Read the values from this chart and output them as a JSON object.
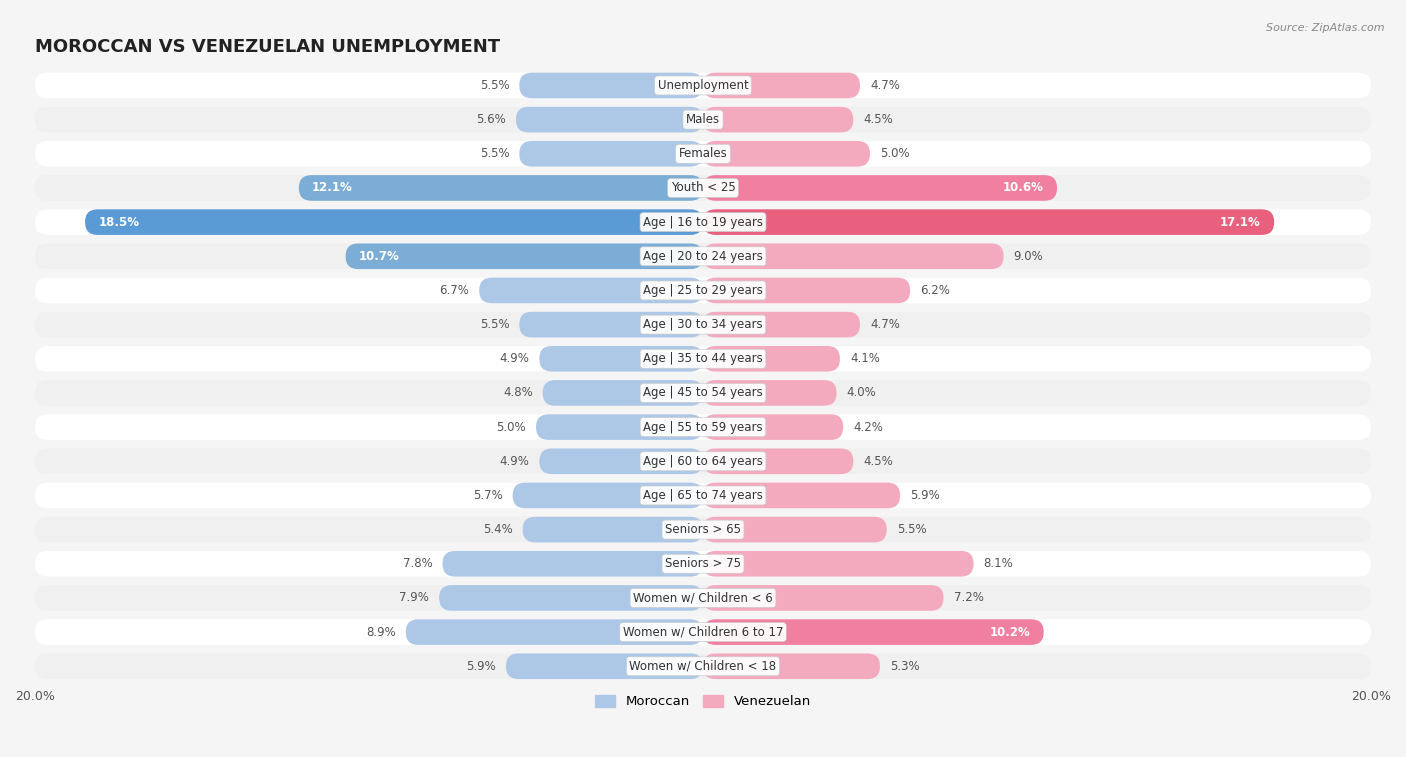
{
  "title": "MOROCCAN VS VENEZUELAN UNEMPLOYMENT",
  "source": "Source: ZipAtlas.com",
  "categories": [
    "Unemployment",
    "Males",
    "Females",
    "Youth < 25",
    "Age | 16 to 19 years",
    "Age | 20 to 24 years",
    "Age | 25 to 29 years",
    "Age | 30 to 34 years",
    "Age | 35 to 44 years",
    "Age | 45 to 54 years",
    "Age | 55 to 59 years",
    "Age | 60 to 64 years",
    "Age | 65 to 74 years",
    "Seniors > 65",
    "Seniors > 75",
    "Women w/ Children < 6",
    "Women w/ Children 6 to 17",
    "Women w/ Children < 18"
  ],
  "moroccan": [
    5.5,
    5.6,
    5.5,
    12.1,
    18.5,
    10.7,
    6.7,
    5.5,
    4.9,
    4.8,
    5.0,
    4.9,
    5.7,
    5.4,
    7.8,
    7.9,
    8.9,
    5.9
  ],
  "venezuelan": [
    4.7,
    4.5,
    5.0,
    10.6,
    17.1,
    9.0,
    6.2,
    4.7,
    4.1,
    4.0,
    4.2,
    4.5,
    5.9,
    5.5,
    8.1,
    7.2,
    10.2,
    5.3
  ],
  "moroccan_color_normal": "#adc8e6",
  "moroccan_color_medium": "#7badd6",
  "moroccan_color_large": "#5b9bd5",
  "venezuelan_color_normal": "#f4aabe",
  "venezuelan_color_medium": "#f07fa0",
  "venezuelan_color_large": "#e8607e",
  "row_bg_light": "#f0f0f0",
  "row_bg_white": "#ffffff",
  "axis_limit": 20.0,
  "background_color": "#f5f5f5",
  "legend_moroccan": "Moroccan",
  "legend_venezuelan": "Venezuelan",
  "title_fontsize": 13,
  "label_fontsize": 8.5,
  "value_fontsize": 8.5
}
